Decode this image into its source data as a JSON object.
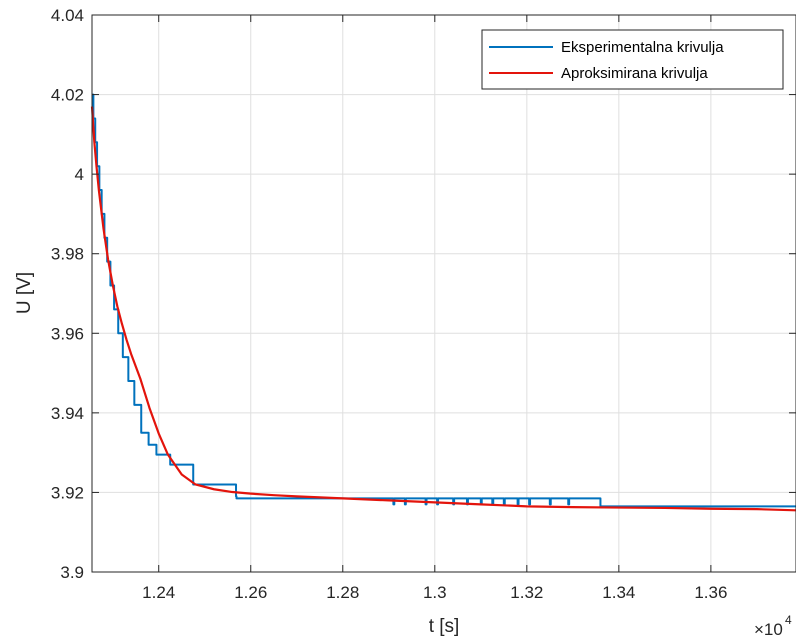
{
  "chart_data": {
    "type": "line",
    "title": "",
    "xlabel": "t [s]",
    "ylabel": "U [V]",
    "x_exponent_label": "×10",
    "x_exponent_power": "4",
    "xlim": [
      1.2255,
      1.3785
    ],
    "ylim": [
      3.9,
      4.04
    ],
    "x_scale_factor": 10000,
    "x_ticks": [
      1.24,
      1.26,
      1.28,
      1.3,
      1.32,
      1.34,
      1.36
    ],
    "x_tick_labels": [
      "1.24",
      "1.26",
      "1.28",
      "1.3",
      "1.32",
      "1.34",
      "1.36"
    ],
    "y_ticks": [
      3.9,
      3.92,
      3.94,
      3.96,
      3.98,
      4.0,
      4.02,
      4.04
    ],
    "y_tick_labels": [
      "3.9",
      "3.92",
      "3.94",
      "3.96",
      "3.98",
      "4",
      "4.02",
      "4.04"
    ],
    "grid": true,
    "legend_position": "top-right",
    "series": [
      {
        "name": "Eksperimentalna krivulja",
        "color": "#0072BD",
        "x": [
          1.2255,
          1.2258,
          1.2258,
          1.2262,
          1.2262,
          1.2266,
          1.2266,
          1.2271,
          1.2271,
          1.2276,
          1.2276,
          1.2282,
          1.2282,
          1.2288,
          1.2288,
          1.2295,
          1.2295,
          1.2303,
          1.2303,
          1.2312,
          1.2312,
          1.2322,
          1.2322,
          1.2334,
          1.2334,
          1.2347,
          1.2347,
          1.2362,
          1.2362,
          1.2378,
          1.2378,
          1.2395,
          1.2395,
          1.2425,
          1.2425,
          1.2475,
          1.2475,
          1.2568,
          1.2568,
          1.2569,
          1.2569,
          1.291,
          1.291,
          1.2912,
          1.2912,
          1.2935,
          1.2935,
          1.2937,
          1.2937,
          1.298,
          1.298,
          1.2982,
          1.2982,
          1.3005,
          1.3005,
          1.3007,
          1.3007,
          1.304,
          1.304,
          1.3042,
          1.3042,
          1.307,
          1.307,
          1.3072,
          1.3072,
          1.31,
          1.31,
          1.3102,
          1.3102,
          1.3125,
          1.3125,
          1.3127,
          1.3127,
          1.315,
          1.315,
          1.3152,
          1.3152,
          1.318,
          1.318,
          1.3182,
          1.3182,
          1.3205,
          1.3205,
          1.3207,
          1.3207,
          1.325,
          1.325,
          1.3252,
          1.3252,
          1.329,
          1.329,
          1.3292,
          1.3292,
          1.336,
          1.336,
          1.3785
        ],
        "y": [
          4.02,
          4.02,
          4.014,
          4.014,
          4.008,
          4.008,
          4.002,
          4.002,
          3.996,
          3.996,
          3.99,
          3.99,
          3.984,
          3.984,
          3.978,
          3.978,
          3.972,
          3.972,
          3.966,
          3.966,
          3.96,
          3.96,
          3.954,
          3.954,
          3.948,
          3.948,
          3.942,
          3.942,
          3.935,
          3.935,
          3.932,
          3.932,
          3.9295,
          3.9295,
          3.927,
          3.927,
          3.922,
          3.922,
          3.919,
          3.919,
          3.9185,
          3.9185,
          3.917,
          3.917,
          3.9185,
          3.9185,
          3.917,
          3.917,
          3.9185,
          3.9185,
          3.917,
          3.917,
          3.9185,
          3.9185,
          3.917,
          3.917,
          3.9185,
          3.9185,
          3.917,
          3.917,
          3.9185,
          3.9185,
          3.917,
          3.917,
          3.9185,
          3.9185,
          3.917,
          3.917,
          3.9185,
          3.9185,
          3.917,
          3.917,
          3.9185,
          3.9185,
          3.917,
          3.917,
          3.9185,
          3.9185,
          3.917,
          3.917,
          3.9185,
          3.9185,
          3.917,
          3.917,
          3.9185,
          3.9185,
          3.917,
          3.917,
          3.9185,
          3.9185,
          3.917,
          3.917,
          3.9185,
          3.9185,
          3.9165,
          3.9165
        ]
      },
      {
        "name": "Aproksimirana krivulja",
        "color": "#E3140C",
        "x": [
          1.2255,
          1.226,
          1.2265,
          1.227,
          1.228,
          1.229,
          1.23,
          1.231,
          1.232,
          1.233,
          1.234,
          1.236,
          1.238,
          1.24,
          1.242,
          1.245,
          1.248,
          1.252,
          1.256,
          1.26,
          1.265,
          1.27,
          1.28,
          1.29,
          1.3,
          1.31,
          1.32,
          1.33,
          1.34,
          1.35,
          1.36,
          1.37,
          1.3785
        ],
        "y": [
          4.017,
          4.0082,
          4.0017,
          3.9959,
          3.9863,
          3.9785,
          3.9722,
          3.9668,
          3.9624,
          3.9584,
          3.9548,
          3.9486,
          3.9412,
          3.9348,
          3.9295,
          3.9245,
          3.922,
          3.9208,
          3.9201,
          3.9197,
          3.9193,
          3.919,
          3.9185,
          3.918,
          3.9175,
          3.917,
          3.9165,
          3.9163,
          3.9162,
          3.9161,
          3.9159,
          3.9158,
          3.9155
        ]
      }
    ]
  }
}
